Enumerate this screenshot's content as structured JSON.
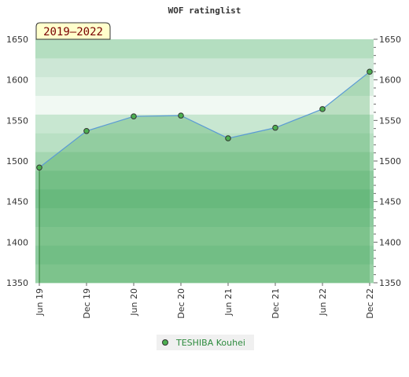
{
  "chart_data": {
    "type": "area",
    "title": "WOF ratinglist",
    "period_label": "2019–2022",
    "x": [
      "Jun 19",
      "Dec 19",
      "Jun 20",
      "Dec 20",
      "Jun 21",
      "Dec 21",
      "Jun 22",
      "Dec 22"
    ],
    "series": [
      {
        "name": "TESHIBA Kouhei",
        "values": [
          1492,
          1537,
          1555,
          1556,
          1528,
          1541,
          1564,
          1610
        ]
      }
    ],
    "ylim": [
      1350,
      1650
    ],
    "y_ticks": [
      1350,
      1400,
      1450,
      1500,
      1550,
      1600,
      1650
    ],
    "y_axes": "left-and-right",
    "grid": "alternating horizontal bands",
    "legend_position": "bottom-center",
    "colors": {
      "line": "#5b9bd5",
      "marker_fill": "#4caf50",
      "area": "#2e9e44",
      "band_dark": "#8fcca0",
      "band_light": "#cde7d6",
      "badge_bg": "#ffffcc",
      "badge_text": "#7a0000",
      "legend_text": "#2e8b3e"
    }
  }
}
